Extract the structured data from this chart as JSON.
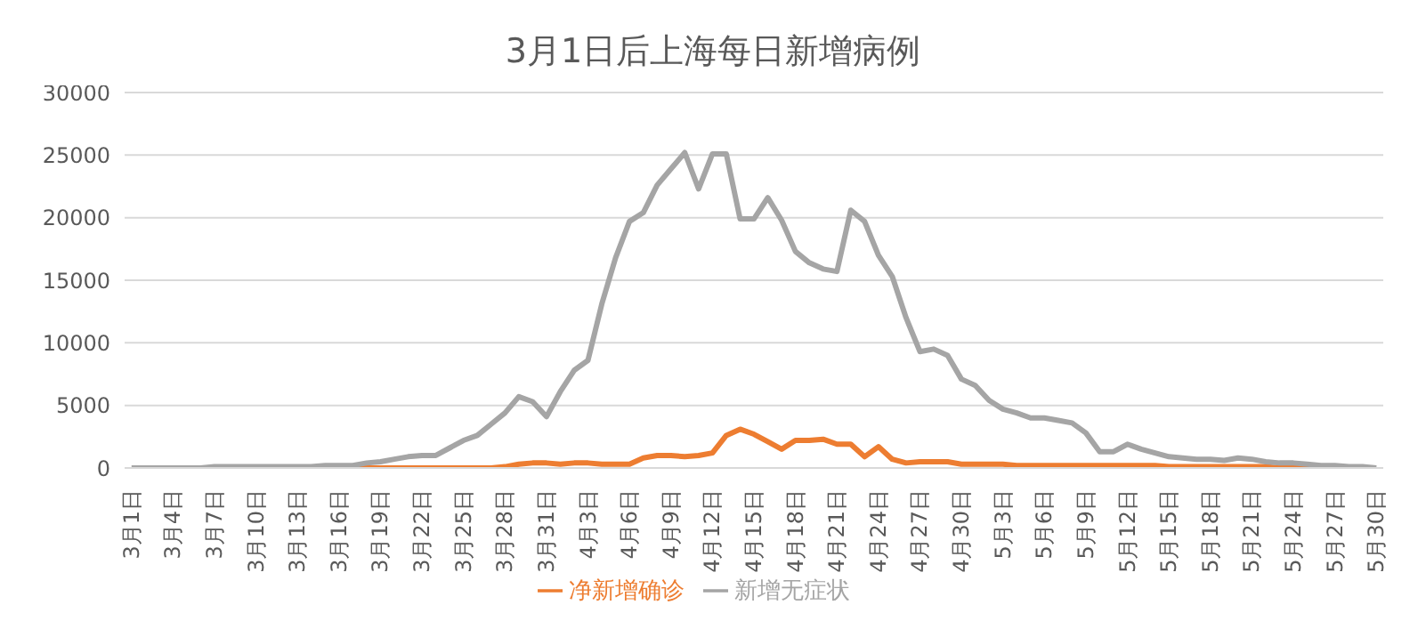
{
  "chart_data": {
    "type": "line",
    "title": "3月1日后上海每日新增病例",
    "categories": [
      "3月1日",
      null,
      null,
      "3月4日",
      null,
      null,
      "3月7日",
      null,
      null,
      "3月10日",
      null,
      null,
      "3月13日",
      null,
      null,
      "3月16日",
      null,
      null,
      "3月19日",
      null,
      null,
      "3月22日",
      null,
      null,
      "3月25日",
      null,
      null,
      "3月28日",
      null,
      null,
      "3月31日",
      null,
      null,
      "4月3日",
      null,
      null,
      "4月6日",
      null,
      null,
      "4月9日",
      null,
      null,
      "4月12日",
      null,
      null,
      "4月15日",
      null,
      null,
      "4月18日",
      null,
      null,
      "4月21日",
      null,
      null,
      "4月24日",
      null,
      null,
      "4月27日",
      null,
      null,
      "4月30日",
      null,
      null,
      "5月3日",
      null,
      null,
      "5月6日",
      null,
      null,
      "5月9日",
      null,
      null,
      "5月12日",
      null,
      null,
      "5月15日",
      null,
      null,
      "5月18日",
      null,
      null,
      "5月21日",
      null,
      null,
      "5月24日",
      null,
      null,
      "5月27日",
      null,
      null,
      "5月30日"
    ],
    "series": [
      {
        "name": "净新增确诊",
        "color": "#ed7d31",
        "values": [
          null,
          null,
          null,
          null,
          null,
          null,
          null,
          null,
          null,
          null,
          null,
          null,
          null,
          null,
          null,
          0,
          0,
          0,
          0,
          0,
          0,
          0,
          0,
          0,
          0,
          0,
          0,
          100,
          300,
          400,
          400,
          300,
          400,
          400,
          300,
          300,
          300,
          800,
          1000,
          1000,
          900,
          1000,
          1200,
          2600,
          3100,
          2700,
          2100,
          1500,
          2200,
          2200,
          2300,
          1900,
          1900,
          900,
          1700,
          700,
          400,
          500,
          500,
          500,
          300,
          300,
          300,
          300,
          200,
          200,
          200,
          200,
          200,
          200,
          200,
          200,
          200,
          200,
          200,
          100,
          100,
          100,
          100,
          100,
          100,
          100,
          100,
          0,
          0,
          0,
          0,
          null,
          null,
          null,
          null
        ]
      },
      {
        "name": "新增无症状",
        "color": "#a5a5a5",
        "values": [
          0,
          0,
          0,
          0,
          0,
          0,
          100,
          100,
          100,
          100,
          100,
          100,
          100,
          100,
          200,
          200,
          200,
          400,
          500,
          700,
          900,
          1000,
          1000,
          1600,
          2200,
          2600,
          3500,
          4400,
          5700,
          5300,
          4100,
          6100,
          7800,
          8600,
          13100,
          16800,
          19700,
          20400,
          22600,
          23900,
          25200,
          22300,
          25100,
          25100,
          19900,
          19900,
          21600,
          19800,
          17300,
          16400,
          15900,
          15700,
          20600,
          19700,
          17000,
          15300,
          12000,
          9300,
          9500,
          9000,
          7100,
          6600,
          5400,
          4700,
          4400,
          4000,
          4000,
          3800,
          3600,
          2800,
          1300,
          1300,
          1900,
          1500,
          1200,
          900,
          800,
          700,
          700,
          600,
          800,
          700,
          500,
          400,
          400,
          300,
          200,
          200,
          100,
          100,
          0
        ]
      }
    ],
    "ylim": [
      0,
      30000
    ],
    "yticks": [
      0,
      5000,
      10000,
      15000,
      20000,
      25000,
      30000
    ],
    "grid": "y",
    "legend": "bottom",
    "marker": "none",
    "line_style": "solid"
  }
}
